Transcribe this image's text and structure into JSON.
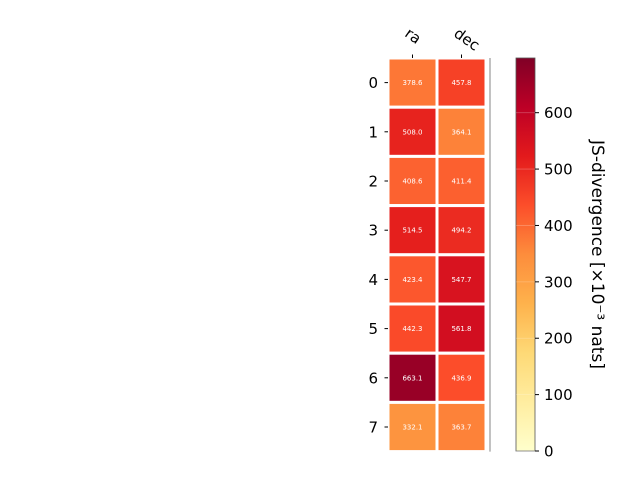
{
  "chart_data": {
    "type": "heatmap",
    "columns": [
      "ra",
      "dec"
    ],
    "rows": [
      "0",
      "1",
      "2",
      "3",
      "4",
      "5",
      "6",
      "7"
    ],
    "values": [
      [
        378.6,
        457.8
      ],
      [
        508.0,
        364.1
      ],
      [
        408.6,
        411.4
      ],
      [
        514.5,
        494.2
      ],
      [
        423.4,
        547.7
      ],
      [
        442.3,
        561.8
      ],
      [
        663.1,
        436.9
      ],
      [
        332.1,
        363.7
      ]
    ],
    "cell_labels": [
      [
        "378.6",
        "457.8"
      ],
      [
        "508.0",
        "364.1"
      ],
      [
        "408.6",
        "411.4"
      ],
      [
        "514.5",
        "494.2"
      ],
      [
        "423.4",
        "547.7"
      ],
      [
        "442.3",
        "561.8"
      ],
      [
        "663.1",
        "436.9"
      ],
      [
        "332.1",
        "363.7"
      ]
    ],
    "colorbar": {
      "label": "JS-divergence [×10⁻³ nats]",
      "range": [
        0,
        697
      ],
      "ticks": [
        "0",
        "100",
        "200",
        "300",
        "400",
        "500",
        "600"
      ],
      "tick_values": [
        0,
        100,
        200,
        300,
        400,
        500,
        600
      ],
      "colormap": "YlOrRd",
      "colors": [
        "#ffffcc",
        "#ffeda0",
        "#fed976",
        "#feb24c",
        "#fd8d3c",
        "#fc4e2a",
        "#e31a1c",
        "#bd0026",
        "#800026"
      ]
    }
  }
}
